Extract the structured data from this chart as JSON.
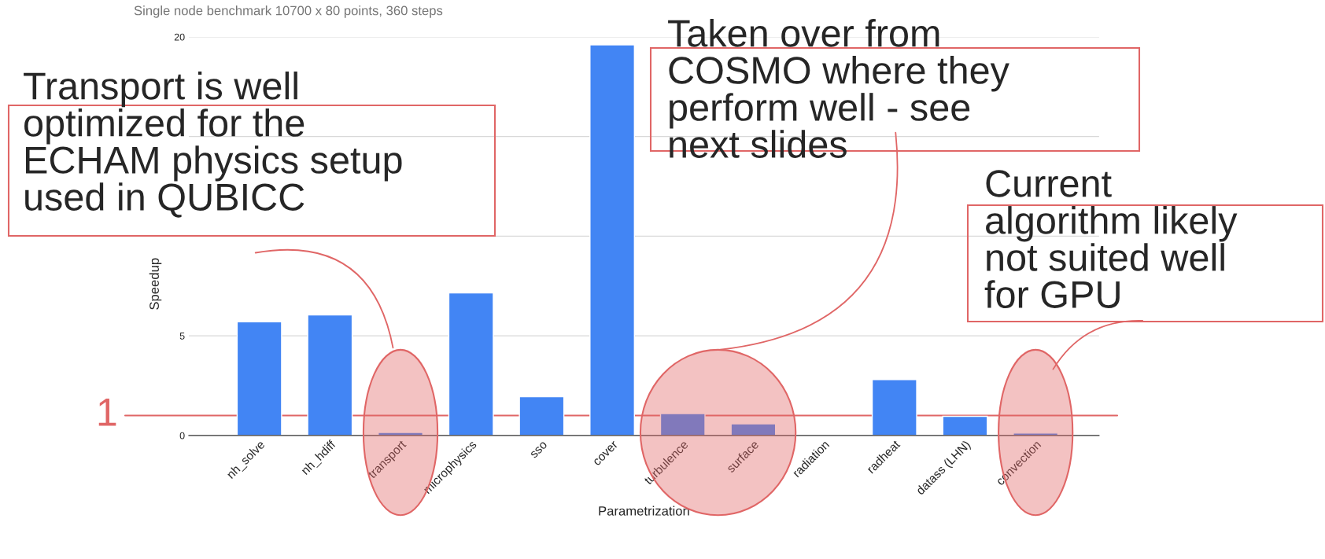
{
  "chart_data": {
    "type": "bar",
    "title": "Single node benchmark 10700 x 80 points, 360 steps",
    "xlabel": "Parametrization",
    "ylabel": "Speedup",
    "categories": [
      "nh_solve",
      "nh_hdiff",
      "transport",
      "microphysics",
      "sso",
      "cover",
      "turbulence",
      "surface",
      "radiation",
      "radheat",
      "datass (LHN)",
      "convection"
    ],
    "values": [
      5.7,
      6.05,
      0.15,
      7.15,
      1.95,
      19.6,
      1.1,
      0.58,
      null,
      2.8,
      0.96,
      0.12
    ],
    "color": "#4285f4",
    "ylim": [
      0,
      20
    ],
    "yticks": [
      0,
      5,
      {
        "value": 10,
        "label": null
      },
      {
        "value": 15,
        "label": null
      },
      20
    ],
    "grid": "y",
    "legend": false,
    "ref_lines": [
      {
        "axis": "y",
        "value": 1,
        "label": "1",
        "color": "#e06666"
      }
    ],
    "annotations": [
      "Transport is well optimized for the ECHAM physics setup used in QUBICC",
      "Taken over from COSMO where they perform well - see next slides",
      "Current algorithm likely not suited well for GPU"
    ]
  }
}
